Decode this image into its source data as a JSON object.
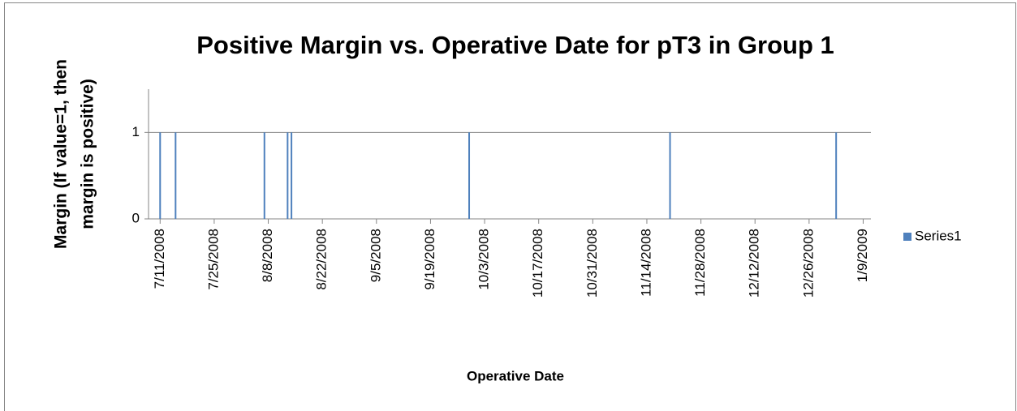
{
  "chart_data": {
    "type": "bar",
    "title": "Positive Margin vs. Operative Date for pT3 in Group 1",
    "ylabel": [
      "Margin (If value=1, then",
      "margin is positive)"
    ],
    "xlabel": "Operative Date",
    "x": [
      "2008-07-11",
      "2008-07-15",
      "2008-08-07",
      "2008-08-13",
      "2008-08-14",
      "2008-09-29",
      "2008-11-20",
      "2009-01-02"
    ],
    "series": [
      {
        "name": "Series1",
        "color": "#4f81bd",
        "values": [
          1,
          1,
          1,
          1,
          1,
          1,
          1,
          1
        ]
      }
    ],
    "xlim": [
      "2008-07-08",
      "2009-01-11"
    ],
    "xticks": [
      {
        "value": "2008-07-11",
        "label": "7/11/2008"
      },
      {
        "value": "2008-07-25",
        "label": "7/25/2008"
      },
      {
        "value": "2008-08-08",
        "label": "8/8/2008"
      },
      {
        "value": "2008-08-22",
        "label": "8/22/2008"
      },
      {
        "value": "2008-09-05",
        "label": "9/5/2008"
      },
      {
        "value": "2008-09-19",
        "label": "9/19/2008"
      },
      {
        "value": "2008-10-03",
        "label": "10/3/2008"
      },
      {
        "value": "2008-10-17",
        "label": "10/17/2008"
      },
      {
        "value": "2008-10-31",
        "label": "10/31/2008"
      },
      {
        "value": "2008-11-14",
        "label": "11/14/2008"
      },
      {
        "value": "2008-11-28",
        "label": "11/28/2008"
      },
      {
        "value": "2008-12-12",
        "label": "12/12/2008"
      },
      {
        "value": "2008-12-26",
        "label": "12/26/2008"
      },
      {
        "value": "2009-01-09",
        "label": "1/9/2009"
      }
    ],
    "ylim": [
      0,
      1.5
    ],
    "yticks": [
      0,
      1
    ],
    "grid": true,
    "legend": "right"
  }
}
